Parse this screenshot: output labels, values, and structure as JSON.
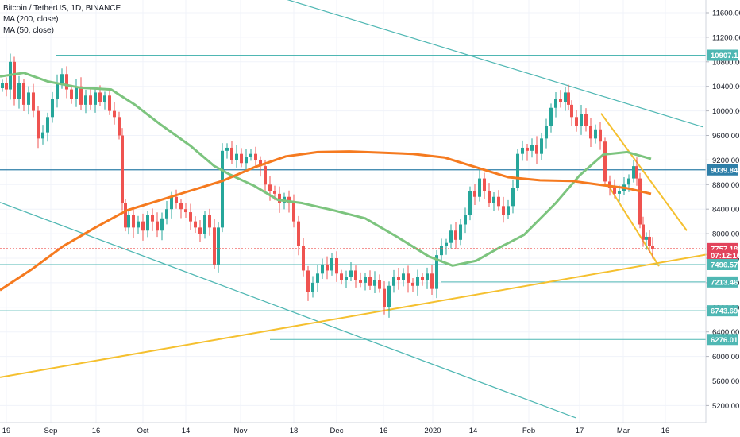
{
  "legend": {
    "symbol": "Bitcoin / TetherUS, 1D, BINANCE",
    "ma200": "MA (200, close)",
    "ma50": "MA (50, close)"
  },
  "chart_data": {
    "type": "candlestick",
    "y_axis_ticks": [
      "11600.00",
      "11200.00",
      "10800.00",
      "10400.00",
      "10000.00",
      "9600.00",
      "9200.00",
      "8800.00",
      "8400.00",
      "8000.00",
      "7600.00",
      "7200.00",
      "6800.00",
      "6400.00",
      "6000.00",
      "5600.00",
      "5200.00"
    ],
    "ylim": [
      5000,
      11900
    ],
    "x_axis_ticks": [
      "19",
      "Sep",
      "16",
      "Oct",
      "14",
      "Nov",
      "18",
      "Dec",
      "16",
      "2020",
      "14",
      "Feb",
      "17",
      "Mar",
      "16"
    ],
    "price_tags": [
      {
        "label": "10907.16",
        "value": 10907.16,
        "color": "#4fb7b3"
      },
      {
        "label": "9039.84",
        "value": 9039.84,
        "color": "#2f7fa8"
      },
      {
        "label": "7757.18",
        "value": 7757.18,
        "color": "#e2445c"
      },
      {
        "label": "07:12:10",
        "value": 7645,
        "color": "#e2445c"
      },
      {
        "label": "7496.57",
        "value": 7496.57,
        "color": "#4fb7b3"
      },
      {
        "label": "7213.46",
        "value": 7213.46,
        "color": "#4fb7b3"
      },
      {
        "label": "6743.69",
        "value": 6743.69,
        "color": "#4fb7b3"
      },
      {
        "label": "6276.01",
        "value": 6276.01,
        "color": "#4fb7b3"
      }
    ],
    "horizontal_levels": [
      10907.16,
      9039.84,
      7496.57,
      7213.46,
      6743.69,
      6276.01
    ],
    "last_price": 7757.18,
    "series_colors": {
      "ma200": "#f57a1f",
      "ma50": "#7cc47e",
      "up": "#26a69a",
      "down": "#ef5350",
      "channel": "#4fb7b3",
      "trend": "#f5c02f"
    },
    "ma200_points": [
      [
        0,
        7080
      ],
      [
        40,
        7420
      ],
      [
        80,
        7800
      ],
      [
        120,
        8100
      ],
      [
        160,
        8380
      ],
      [
        200,
        8540
      ],
      [
        240,
        8700
      ],
      [
        280,
        8860
      ],
      [
        320,
        9080
      ],
      [
        360,
        9260
      ],
      [
        400,
        9330
      ],
      [
        440,
        9340
      ],
      [
        480,
        9320
      ],
      [
        520,
        9300
      ],
      [
        560,
        9240
      ],
      [
        600,
        9080
      ],
      [
        640,
        8920
      ],
      [
        680,
        8870
      ],
      [
        720,
        8860
      ],
      [
        760,
        8790
      ],
      [
        790,
        8740
      ],
      [
        820,
        8650
      ]
    ],
    "ma50_points": [
      [
        0,
        10560
      ],
      [
        30,
        10620
      ],
      [
        60,
        10480
      ],
      [
        100,
        10380
      ],
      [
        140,
        10350
      ],
      [
        170,
        10100
      ],
      [
        200,
        9800
      ],
      [
        240,
        9430
      ],
      [
        270,
        9100
      ],
      [
        290,
        8960
      ],
      [
        320,
        8780
      ],
      [
        350,
        8550
      ],
      [
        380,
        8500
      ],
      [
        420,
        8380
      ],
      [
        460,
        8250
      ],
      [
        500,
        7950
      ],
      [
        540,
        7630
      ],
      [
        570,
        7480
      ],
      [
        600,
        7560
      ],
      [
        630,
        7780
      ],
      [
        660,
        7980
      ],
      [
        700,
        8500
      ],
      [
        730,
        8950
      ],
      [
        760,
        9290
      ],
      [
        790,
        9330
      ],
      [
        820,
        9220
      ]
    ],
    "trend_lines": [
      {
        "kind": "channel",
        "points": [
          [
            345,
            11880
          ],
          [
            885,
            9740
          ]
        ]
      },
      {
        "kind": "channel",
        "points": [
          [
            0,
            8510
          ],
          [
            725,
            5000
          ]
        ]
      },
      {
        "kind": "trend",
        "points": [
          [
            0,
            5660
          ],
          [
            890,
            7660
          ]
        ]
      },
      {
        "kind": "trend",
        "points": [
          [
            757,
            9960
          ],
          [
            865,
            8050
          ]
        ]
      },
      {
        "kind": "trend",
        "points": [
          [
            765,
            8810
          ],
          [
            830,
            7470
          ]
        ]
      }
    ],
    "candles_close_path": [
      [
        3,
        10450
      ],
      [
        8,
        10350
      ],
      [
        13,
        10800
      ],
      [
        18,
        10200
      ],
      [
        24,
        10450
      ],
      [
        30,
        10100
      ],
      [
        36,
        10300
      ],
      [
        42,
        10000
      ],
      [
        48,
        9550
      ],
      [
        54,
        9650
      ],
      [
        60,
        9900
      ],
      [
        66,
        10200
      ],
      [
        72,
        10450
      ],
      [
        78,
        10600
      ],
      [
        84,
        10350
      ],
      [
        90,
        10200
      ],
      [
        96,
        10400
      ],
      [
        102,
        10100
      ],
      [
        108,
        10250
      ],
      [
        114,
        10100
      ],
      [
        120,
        10300
      ],
      [
        126,
        10150
      ],
      [
        132,
        10250
      ],
      [
        138,
        10000
      ],
      [
        144,
        9900
      ],
      [
        150,
        9600
      ],
      [
        154,
        8500
      ],
      [
        158,
        8100
      ],
      [
        162,
        8300
      ],
      [
        168,
        8100
      ],
      [
        174,
        8200
      ],
      [
        180,
        8050
      ],
      [
        186,
        8300
      ],
      [
        192,
        8200
      ],
      [
        198,
        8050
      ],
      [
        204,
        8250
      ],
      [
        210,
        8400
      ],
      [
        216,
        8600
      ],
      [
        222,
        8500
      ],
      [
        228,
        8400
      ],
      [
        234,
        8350
      ],
      [
        240,
        8200
      ],
      [
        246,
        8100
      ],
      [
        252,
        8000
      ],
      [
        258,
        8300
      ],
      [
        264,
        8100
      ],
      [
        270,
        7500
      ],
      [
        275,
        8100
      ],
      [
        280,
        9350
      ],
      [
        286,
        9400
      ],
      [
        292,
        9200
      ],
      [
        298,
        9300
      ],
      [
        304,
        9150
      ],
      [
        310,
        9250
      ],
      [
        316,
        9300
      ],
      [
        322,
        9200
      ],
      [
        328,
        9100
      ],
      [
        334,
        8800
      ],
      [
        340,
        8700
      ],
      [
        346,
        8650
      ],
      [
        352,
        8500
      ],
      [
        358,
        8600
      ],
      [
        364,
        8500
      ],
      [
        370,
        8200
      ],
      [
        376,
        7800
      ],
      [
        382,
        7400
      ],
      [
        388,
        7050
      ],
      [
        394,
        7200
      ],
      [
        400,
        7350
      ],
      [
        406,
        7500
      ],
      [
        412,
        7400
      ],
      [
        418,
        7600
      ],
      [
        424,
        7350
      ],
      [
        430,
        7250
      ],
      [
        436,
        7300
      ],
      [
        442,
        7400
      ],
      [
        448,
        7250
      ],
      [
        454,
        7200
      ],
      [
        460,
        7300
      ],
      [
        466,
        7150
      ],
      [
        472,
        7250
      ],
      [
        478,
        7100
      ],
      [
        484,
        6800
      ],
      [
        490,
        7150
      ],
      [
        496,
        7300
      ],
      [
        502,
        7250
      ],
      [
        508,
        7350
      ],
      [
        514,
        7200
      ],
      [
        520,
        7150
      ],
      [
        526,
        7300
      ],
      [
        532,
        7250
      ],
      [
        538,
        7350
      ],
      [
        544,
        7100
      ],
      [
        550,
        7650
      ],
      [
        556,
        7800
      ],
      [
        562,
        7850
      ],
      [
        568,
        8050
      ],
      [
        574,
        7900
      ],
      [
        580,
        8150
      ],
      [
        586,
        8300
      ],
      [
        592,
        8700
      ],
      [
        598,
        8600
      ],
      [
        604,
        8900
      ],
      [
        610,
        8700
      ],
      [
        616,
        8500
      ],
      [
        622,
        8600
      ],
      [
        628,
        8450
      ],
      [
        634,
        8300
      ],
      [
        640,
        8450
      ],
      [
        646,
        8750
      ],
      [
        652,
        9300
      ],
      [
        658,
        9400
      ],
      [
        664,
        9350
      ],
      [
        670,
        9450
      ],
      [
        676,
        9300
      ],
      [
        682,
        9550
      ],
      [
        688,
        9750
      ],
      [
        694,
        10050
      ],
      [
        700,
        10200
      ],
      [
        706,
        10150
      ],
      [
        712,
        10300
      ],
      [
        716,
        10100
      ],
      [
        720,
        9900
      ],
      [
        726,
        9750
      ],
      [
        732,
        9950
      ],
      [
        738,
        9750
      ],
      [
        744,
        9550
      ],
      [
        750,
        9700
      ],
      [
        756,
        9500
      ],
      [
        762,
        8850
      ],
      [
        768,
        8750
      ],
      [
        774,
        8650
      ],
      [
        780,
        8700
      ],
      [
        786,
        8800
      ],
      [
        792,
        8900
      ],
      [
        798,
        9100
      ],
      [
        802,
        8900
      ],
      [
        806,
        8150
      ],
      [
        810,
        7900
      ],
      [
        814,
        7950
      ],
      [
        818,
        7800
      ],
      [
        822,
        7757
      ]
    ]
  }
}
